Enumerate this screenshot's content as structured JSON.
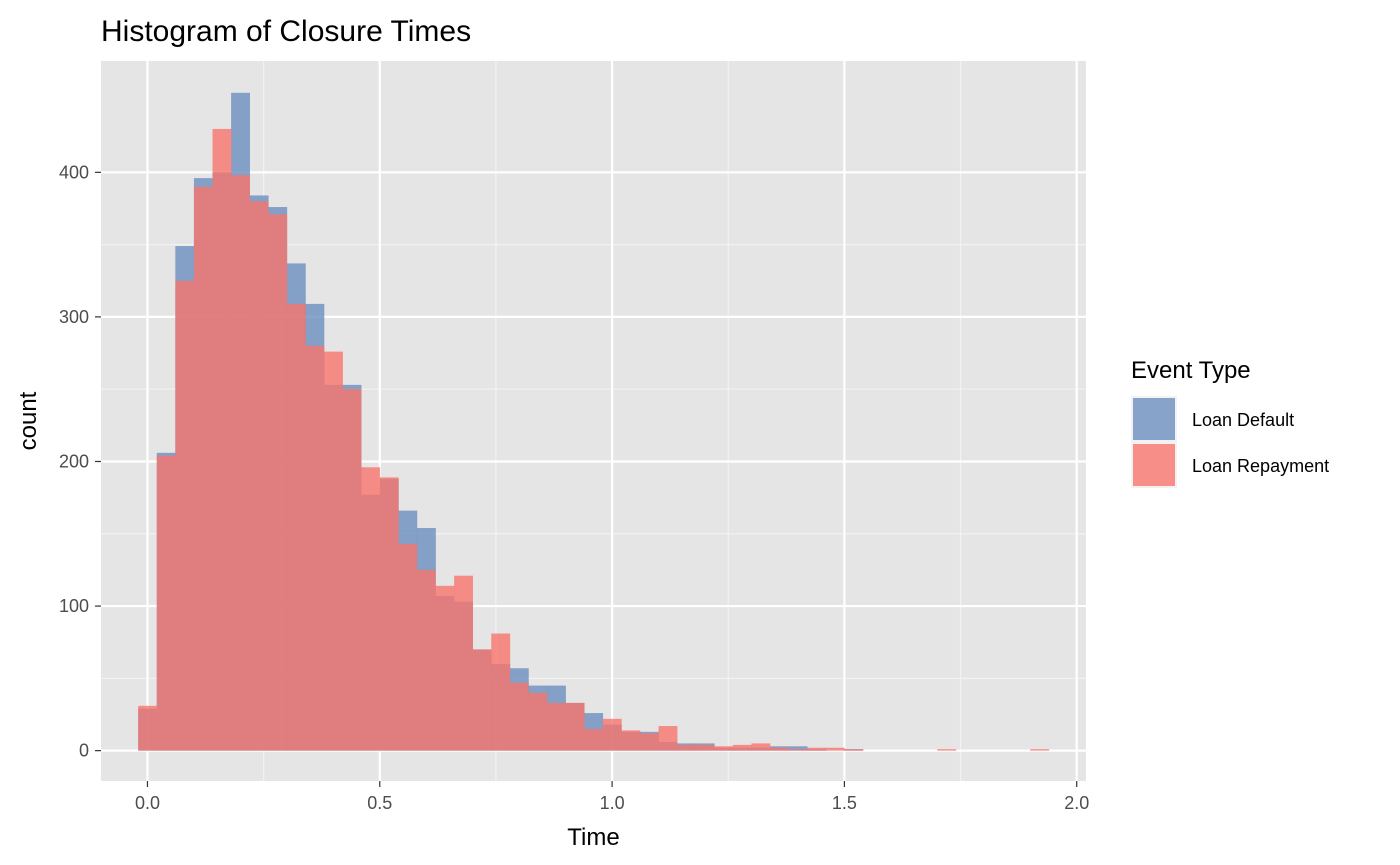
{
  "chart_data": {
    "type": "histogram",
    "title": "Histogram of Closure Times",
    "xlabel": "Time",
    "ylabel": "count",
    "xlim": [
      -0.1,
      2.02
    ],
    "ylim": [
      -21,
      477
    ],
    "x_ticks": [
      0.0,
      0.5,
      1.0,
      1.5,
      2.0
    ],
    "x_tick_labels": [
      "0.0",
      "0.5",
      "1.0",
      "1.5",
      "2.0"
    ],
    "y_ticks": [
      0,
      100,
      200,
      300,
      400
    ],
    "y_tick_labels": [
      "0",
      "100",
      "200",
      "300",
      "400"
    ],
    "bin_width": 0.04,
    "bin_starts": [
      -0.02,
      0.02,
      0.06,
      0.1,
      0.14,
      0.18,
      0.22,
      0.26,
      0.3,
      0.34,
      0.38,
      0.42,
      0.46,
      0.5,
      0.54,
      0.58,
      0.62,
      0.66,
      0.7,
      0.74,
      0.78,
      0.82,
      0.86,
      0.9,
      0.94,
      0.98,
      1.02,
      1.06,
      1.1,
      1.14,
      1.18,
      1.22,
      1.26,
      1.3,
      1.34,
      1.38,
      1.42,
      1.46,
      1.5,
      1.54,
      1.58,
      1.62,
      1.66,
      1.7,
      1.74,
      1.78,
      1.82,
      1.86,
      1.9,
      1.94
    ],
    "grid": true,
    "legend": {
      "title": "Event Type",
      "position": "right"
    },
    "series": [
      {
        "name": "Loan Default",
        "color": "#6c8ebf",
        "values": [
          29,
          206,
          349,
          396,
          400,
          455,
          384,
          376,
          337,
          309,
          253,
          253,
          177,
          188,
          166,
          154,
          107,
          103,
          70,
          60,
          57,
          45,
          45,
          33,
          26,
          18,
          13,
          13,
          6,
          5,
          5,
          2,
          2,
          2,
          3,
          3,
          1,
          0,
          1,
          0,
          0,
          0,
          0,
          0,
          0,
          0,
          0,
          0,
          0,
          0
        ]
      },
      {
        "name": "Loan Repayment",
        "color": "#f8766d",
        "values": [
          31,
          204,
          325,
          390,
          430,
          398,
          380,
          371,
          309,
          280,
          276,
          250,
          196,
          189,
          143,
          125,
          114,
          121,
          70,
          81,
          47,
          40,
          33,
          33,
          15,
          22,
          14,
          12,
          17,
          4,
          4,
          3,
          4,
          5,
          2,
          1,
          2,
          2,
          1,
          0,
          0,
          0,
          0,
          1,
          0,
          0,
          0,
          0,
          1,
          0
        ]
      }
    ]
  }
}
